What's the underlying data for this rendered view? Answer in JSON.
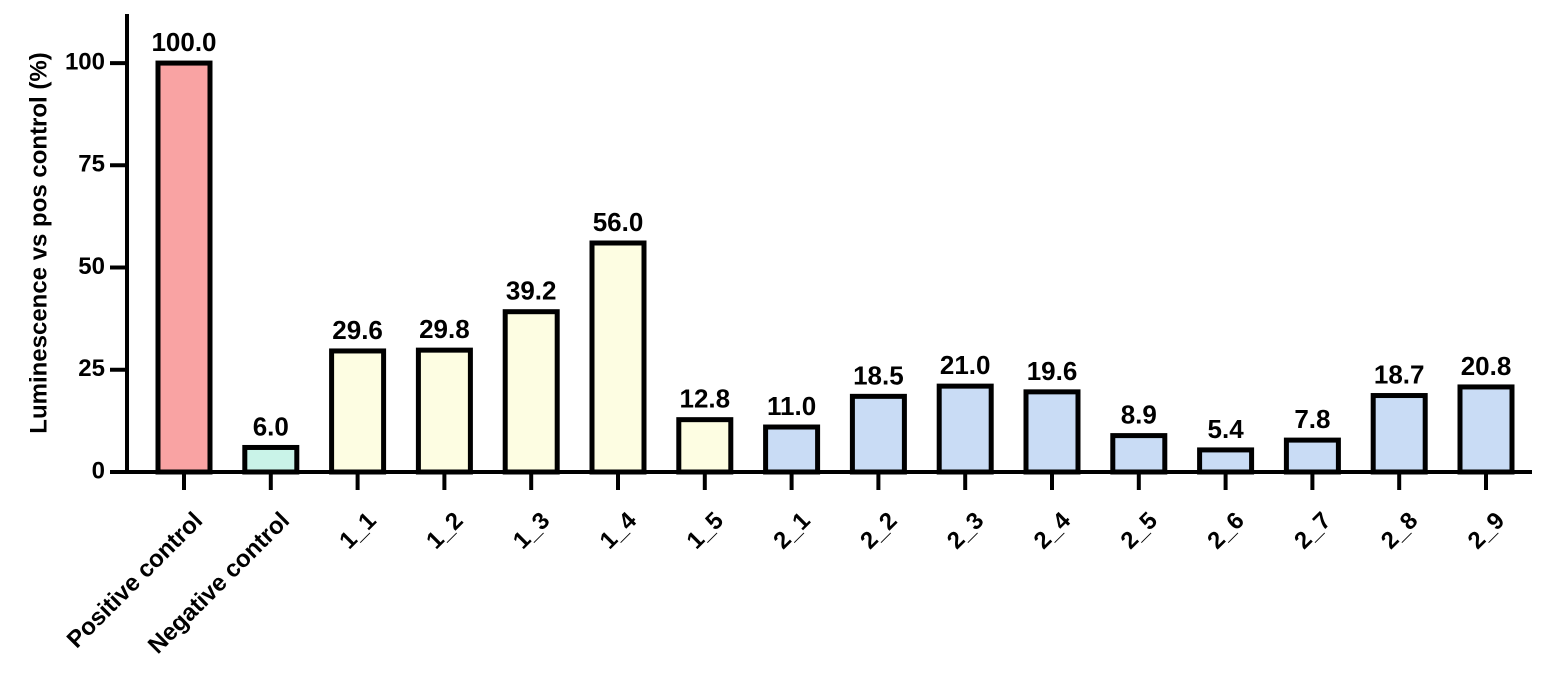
{
  "chart_data": {
    "type": "bar",
    "y_label": "Luminescence vs pos control (%)",
    "categories": [
      "Positive control",
      "Negative control",
      "1_1",
      "1_2",
      "1_3",
      "1_4",
      "1_5",
      "2_1",
      "2_2",
      "2_3",
      "2_4",
      "2_5",
      "2_6",
      "2_7",
      "2_8",
      "2_9"
    ],
    "values": [
      100,
      6,
      29.6,
      29.8,
      39.2,
      56,
      12.8,
      11,
      18.5,
      21,
      19.6,
      8.9,
      5.4,
      7.8,
      18.7,
      20.8
    ],
    "value_labels": [
      "100.0",
      "6.0",
      "29.6",
      "29.8",
      "39.2",
      "56.0",
      "12.8",
      "11.0",
      "18.5",
      "21.0",
      "19.6",
      "8.9",
      "5.4",
      "7.8",
      "18.7",
      "20.8"
    ],
    "colors": [
      "#f9a3a3",
      "#c9f3e8",
      "#fdfde2",
      "#fdfde2",
      "#fdfde2",
      "#fdfde2",
      "#fdfde2",
      "#c9dcf5",
      "#c9dcf5",
      "#c9dcf5",
      "#c9dcf5",
      "#c9dcf5",
      "#c9dcf5",
      "#c9dcf5",
      "#c9dcf5",
      "#c9dcf5"
    ],
    "ylim": [
      0,
      112
    ],
    "yticks": [
      0,
      25,
      50,
      75,
      100
    ],
    "grid": false
  }
}
